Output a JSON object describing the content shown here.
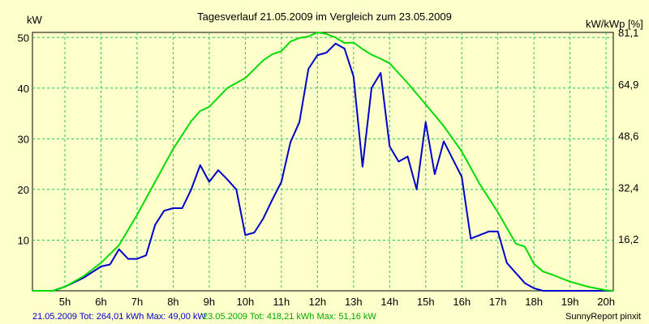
{
  "chart_data": {
    "type": "line",
    "title": "Tagesverlauf 21.05.2009 im Vergleich zum 23.05.2009",
    "ylabel_left": "kW",
    "ylabel_right": "kW/kWp [%]",
    "xlim": [
      4.1,
      20.2
    ],
    "ylim": [
      0,
      51
    ],
    "x_ticks": [
      5,
      6,
      7,
      8,
      9,
      10,
      11,
      12,
      13,
      14,
      15,
      16,
      17,
      18,
      19,
      20
    ],
    "x_tick_labels": [
      "5h",
      "6h",
      "7h",
      "8h",
      "9h",
      "10h",
      "11h",
      "12h",
      "13h",
      "14h",
      "15h",
      "16h",
      "17h",
      "18h",
      "19h",
      "20h"
    ],
    "y_left_ticks": [
      10,
      20,
      30,
      40,
      50
    ],
    "y_left_tick_labels": [
      "10",
      "20",
      "30",
      "40",
      "50"
    ],
    "y_right_ticks": [
      10.2,
      20.4,
      30.6,
      40.8,
      51.0
    ],
    "y_right_tick_labels": [
      "16,2",
      "32,4",
      "48,6",
      "64,9",
      "81,1"
    ],
    "grid": true,
    "series": [
      {
        "name": "21.05.2009",
        "color": "#0000cc",
        "x": [
          4.1,
          4.67,
          5.0,
          5.5,
          6.0,
          6.25,
          6.5,
          6.75,
          7.0,
          7.25,
          7.5,
          7.75,
          8.0,
          8.25,
          8.5,
          8.75,
          9.0,
          9.25,
          9.5,
          9.75,
          10.0,
          10.25,
          10.5,
          10.75,
          11.0,
          11.25,
          11.5,
          11.75,
          12.0,
          12.25,
          12.5,
          12.75,
          13.0,
          13.25,
          13.5,
          13.75,
          14.0,
          14.25,
          14.5,
          14.75,
          15.0,
          15.25,
          15.5,
          15.75,
          16.0,
          16.25,
          16.5,
          16.75,
          17.0,
          17.25,
          17.5,
          17.75,
          18.0,
          18.25,
          18.5,
          19.0,
          19.5,
          20.0,
          20.2
        ],
        "y": [
          0,
          0,
          0.8,
          2.5,
          4.8,
          5.2,
          8.2,
          6.3,
          6.3,
          7.0,
          13.0,
          15.8,
          16.3,
          16.3,
          20.0,
          24.8,
          21.5,
          23.8,
          22.0,
          20.0,
          11.0,
          11.5,
          14.3,
          18.0,
          21.5,
          29.3,
          33.3,
          43.8,
          46.5,
          47.0,
          48.8,
          47.8,
          42.3,
          24.5,
          40.0,
          43.0,
          28.5,
          25.5,
          26.5,
          20.0,
          33.3,
          23.0,
          29.5,
          26.0,
          22.5,
          10.3,
          11.0,
          11.7,
          11.7,
          5.5,
          3.5,
          1.5,
          0.5,
          0,
          0,
          0,
          0,
          0,
          0
        ]
      },
      {
        "name": "23.05.2009",
        "color": "#00dd00",
        "x": [
          4.1,
          4.67,
          5.0,
          5.5,
          6.0,
          6.5,
          7.0,
          7.5,
          8.0,
          8.5,
          8.75,
          9.0,
          9.5,
          10.0,
          10.5,
          10.75,
          11.0,
          11.25,
          11.5,
          11.75,
          12.0,
          12.25,
          12.5,
          12.75,
          13.0,
          13.25,
          13.5,
          13.75,
          14.0,
          14.5,
          15.0,
          15.5,
          16.0,
          16.5,
          17.0,
          17.5,
          17.75,
          18.0,
          18.25,
          18.5,
          19.0,
          19.5,
          20.0,
          20.2
        ],
        "y": [
          0,
          0,
          0.8,
          2.8,
          5.5,
          9.0,
          15.0,
          21.5,
          28.0,
          33.5,
          35.5,
          36.3,
          40.0,
          42.0,
          45.5,
          46.7,
          47.3,
          49.2,
          49.9,
          50.2,
          51.0,
          50.7,
          50.0,
          48.9,
          49.0,
          47.7,
          46.6,
          45.8,
          44.9,
          41.0,
          36.8,
          32.5,
          27.5,
          21.0,
          15.5,
          9.3,
          8.7,
          5.3,
          3.8,
          3.2,
          1.8,
          0.8,
          0.1,
          0
        ]
      }
    ],
    "footer": {
      "series1_stats": "21.05.2009 Tot: 264,01 kWh Max: 49,00 kW",
      "series2_stats": "23.05.2009 Tot: 418,21 kWh Max: 51,16 kW",
      "credit": "SunnyReport pinxit"
    }
  }
}
